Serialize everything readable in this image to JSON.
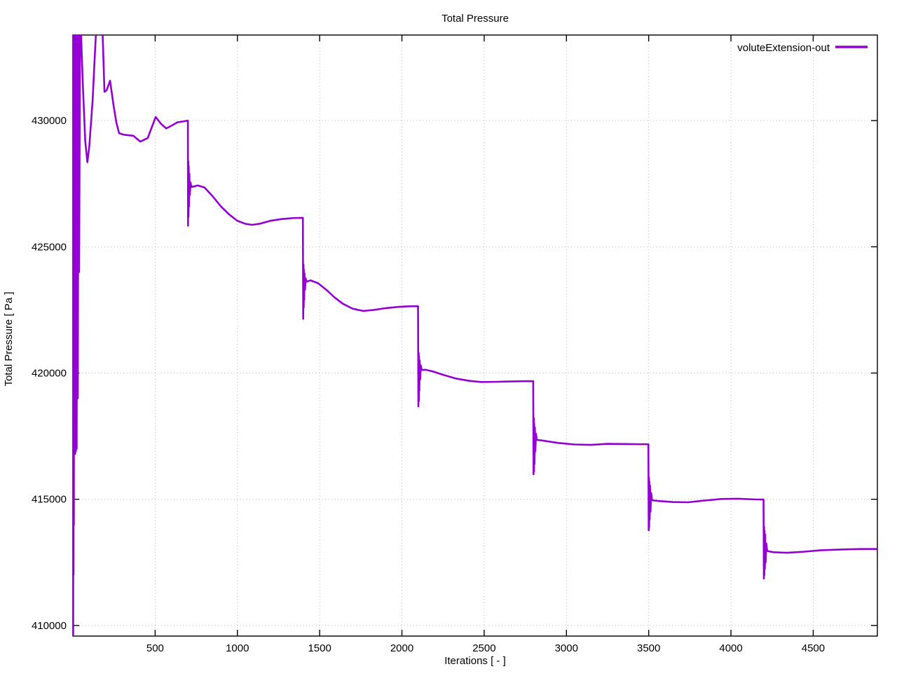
{
  "figure": {
    "background": "#ffffff"
  },
  "chart_data": {
    "type": "line",
    "title": "Total Pressure",
    "xlabel": "Iterations [ - ]",
    "ylabel": "Total Pressure [ Pa ]",
    "grid": true,
    "legend_position": "top-right-inside",
    "xlim": [
      0,
      4890
    ],
    "ylim": [
      409580,
      433390
    ],
    "xtick_values": [
      500,
      1000,
      1500,
      2000,
      2500,
      3000,
      3500,
      4000,
      4500
    ],
    "xtick_labels": [
      "500",
      "1000",
      "1500",
      "2000",
      "2500",
      "3000",
      "3500",
      "4000",
      "4500"
    ],
    "ytick_values": [
      410000,
      415000,
      420000,
      425000,
      430000
    ],
    "ytick_labels": [
      "410000",
      "415000",
      "420000",
      "425000",
      "430000"
    ],
    "colors": {
      "grid": "#b5b5b5",
      "axis": "#000000",
      "text": "#000000"
    },
    "series": [
      {
        "name": "voluteExtension-out",
        "color": "#9400d3",
        "line_width": 2.6,
        "points": [
          [
            0,
            426800
          ],
          [
            1,
            433600
          ],
          [
            2,
            409580
          ],
          [
            3,
            433600
          ],
          [
            4,
            412000
          ],
          [
            5,
            433600
          ],
          [
            6,
            414000
          ],
          [
            8,
            433600
          ],
          [
            10,
            416800
          ],
          [
            12,
            433600
          ],
          [
            14,
            416800
          ],
          [
            16,
            433600
          ],
          [
            18,
            416900
          ],
          [
            20,
            433600
          ],
          [
            23,
            417000
          ],
          [
            26,
            433600
          ],
          [
            30,
            419000
          ],
          [
            34,
            433600
          ],
          [
            38,
            424000
          ],
          [
            44,
            434500
          ],
          [
            60,
            431500
          ],
          [
            75,
            429200
          ],
          [
            88,
            428350
          ],
          [
            100,
            429000
          ],
          [
            120,
            430800
          ],
          [
            135,
            432800
          ],
          [
            149,
            434500
          ],
          [
            175,
            434500
          ],
          [
            183,
            433000
          ],
          [
            192,
            431140
          ],
          [
            205,
            431200
          ],
          [
            226,
            431580
          ],
          [
            247,
            430610
          ],
          [
            265,
            429900
          ],
          [
            281,
            429500
          ],
          [
            310,
            429440
          ],
          [
            367,
            429400
          ],
          [
            410,
            429170
          ],
          [
            455,
            429310
          ],
          [
            503,
            430140
          ],
          [
            535,
            429880
          ],
          [
            567,
            429690
          ],
          [
            600,
            429800
          ],
          [
            635,
            429930
          ],
          [
            673,
            429970
          ],
          [
            699,
            430000
          ],
          [
            700,
            425840
          ],
          [
            702,
            428390
          ],
          [
            703,
            426200
          ],
          [
            704,
            428200
          ],
          [
            706,
            426600
          ],
          [
            708,
            427900
          ],
          [
            711,
            427050
          ],
          [
            715,
            427550
          ],
          [
            720,
            427370
          ],
          [
            760,
            427430
          ],
          [
            800,
            427350
          ],
          [
            850,
            427000
          ],
          [
            900,
            426600
          ],
          [
            950,
            426280
          ],
          [
            1000,
            426030
          ],
          [
            1050,
            425910
          ],
          [
            1090,
            425870
          ],
          [
            1140,
            425920
          ],
          [
            1200,
            426030
          ],
          [
            1270,
            426100
          ],
          [
            1340,
            426140
          ],
          [
            1398,
            426150
          ],
          [
            1400,
            422150
          ],
          [
            1402,
            424300
          ],
          [
            1403,
            422600
          ],
          [
            1404,
            424100
          ],
          [
            1406,
            422900
          ],
          [
            1408,
            423950
          ],
          [
            1411,
            423300
          ],
          [
            1415,
            423750
          ],
          [
            1420,
            423620
          ],
          [
            1445,
            423670
          ],
          [
            1490,
            423560
          ],
          [
            1540,
            423300
          ],
          [
            1590,
            423000
          ],
          [
            1640,
            422750
          ],
          [
            1700,
            422550
          ],
          [
            1765,
            422460
          ],
          [
            1830,
            422500
          ],
          [
            1900,
            422570
          ],
          [
            1980,
            422620
          ],
          [
            2050,
            422645
          ],
          [
            2098,
            422650
          ],
          [
            2100,
            418680
          ],
          [
            2102,
            420800
          ],
          [
            2103,
            418900
          ],
          [
            2104,
            420650
          ],
          [
            2106,
            419300
          ],
          [
            2108,
            420500
          ],
          [
            2111,
            419750
          ],
          [
            2115,
            420300
          ],
          [
            2120,
            420120
          ],
          [
            2145,
            420130
          ],
          [
            2190,
            420060
          ],
          [
            2250,
            419930
          ],
          [
            2330,
            419780
          ],
          [
            2410,
            419690
          ],
          [
            2480,
            419645
          ],
          [
            2560,
            419650
          ],
          [
            2650,
            419665
          ],
          [
            2740,
            419675
          ],
          [
            2798,
            419680
          ],
          [
            2800,
            415990
          ],
          [
            2802,
            418210
          ],
          [
            2803,
            416100
          ],
          [
            2804,
            418000
          ],
          [
            2806,
            416400
          ],
          [
            2808,
            417850
          ],
          [
            2811,
            416900
          ],
          [
            2815,
            417600
          ],
          [
            2820,
            417350
          ],
          [
            2850,
            417330
          ],
          [
            2950,
            417230
          ],
          [
            3050,
            417170
          ],
          [
            3150,
            417155
          ],
          [
            3250,
            417195
          ],
          [
            3350,
            417190
          ],
          [
            3450,
            417180
          ],
          [
            3498,
            417180
          ],
          [
            3500,
            413770
          ],
          [
            3502,
            415850
          ],
          [
            3503,
            413900
          ],
          [
            3504,
            415700
          ],
          [
            3506,
            414200
          ],
          [
            3508,
            415550
          ],
          [
            3511,
            414500
          ],
          [
            3515,
            415250
          ],
          [
            3520,
            414960
          ],
          [
            3560,
            414930
          ],
          [
            3650,
            414890
          ],
          [
            3740,
            414880
          ],
          [
            3840,
            414950
          ],
          [
            3940,
            415010
          ],
          [
            4040,
            415020
          ],
          [
            4140,
            414995
          ],
          [
            4198,
            414990
          ],
          [
            4200,
            411860
          ],
          [
            4202,
            413900
          ],
          [
            4203,
            412000
          ],
          [
            4204,
            413750
          ],
          [
            4206,
            412250
          ],
          [
            4208,
            413600
          ],
          [
            4211,
            412500
          ],
          [
            4215,
            413250
          ],
          [
            4220,
            412950
          ],
          [
            4260,
            412900
          ],
          [
            4340,
            412880
          ],
          [
            4440,
            412920
          ],
          [
            4550,
            412980
          ],
          [
            4670,
            413010
          ],
          [
            4790,
            413030
          ],
          [
            4890,
            413030
          ]
        ]
      }
    ]
  }
}
